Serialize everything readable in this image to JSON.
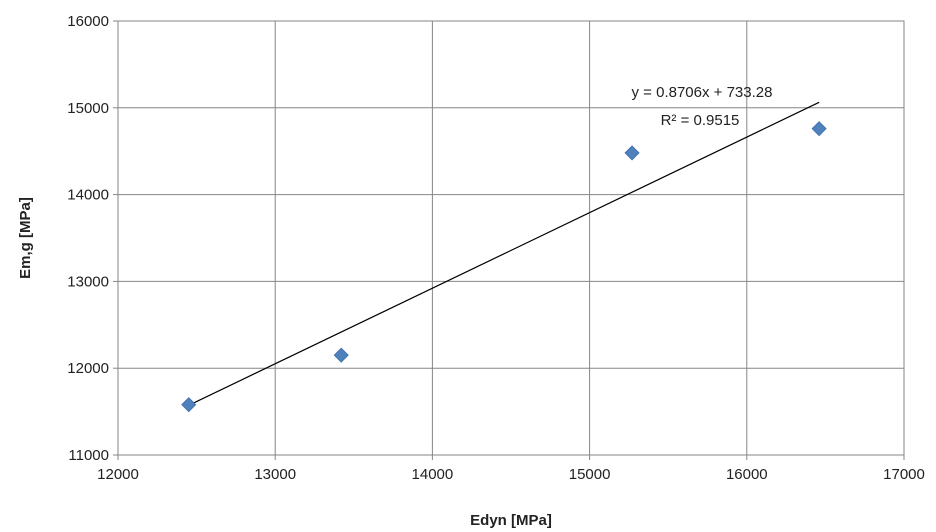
{
  "chart_data": {
    "type": "scatter",
    "xlabel": "Edyn [MPa]",
    "ylabel": "Em,g [MPa]",
    "xlim": [
      12000,
      17000
    ],
    "ylim": [
      11000,
      16000
    ],
    "x_ticks": [
      "12000",
      "13000",
      "14000",
      "15000",
      "16000",
      "17000"
    ],
    "y_ticks": [
      "11000",
      "12000",
      "13000",
      "14000",
      "15000",
      "16000"
    ],
    "grid": true,
    "legend": "none",
    "marker_color": "#4F81BD",
    "series": [
      {
        "points": [
          {
            "x": 12450,
            "y": 11580
          },
          {
            "x": 13420,
            "y": 12150
          },
          {
            "x": 15270,
            "y": 14480
          },
          {
            "x": 16460,
            "y": 14760
          }
        ]
      }
    ],
    "trendline": {
      "slope": 0.8706,
      "intercept": 733.28,
      "x_range": [
        12450,
        16460
      ],
      "equation": "y = 0.8706x + 733.28",
      "r_squared": "R² = 0.9515"
    }
  }
}
